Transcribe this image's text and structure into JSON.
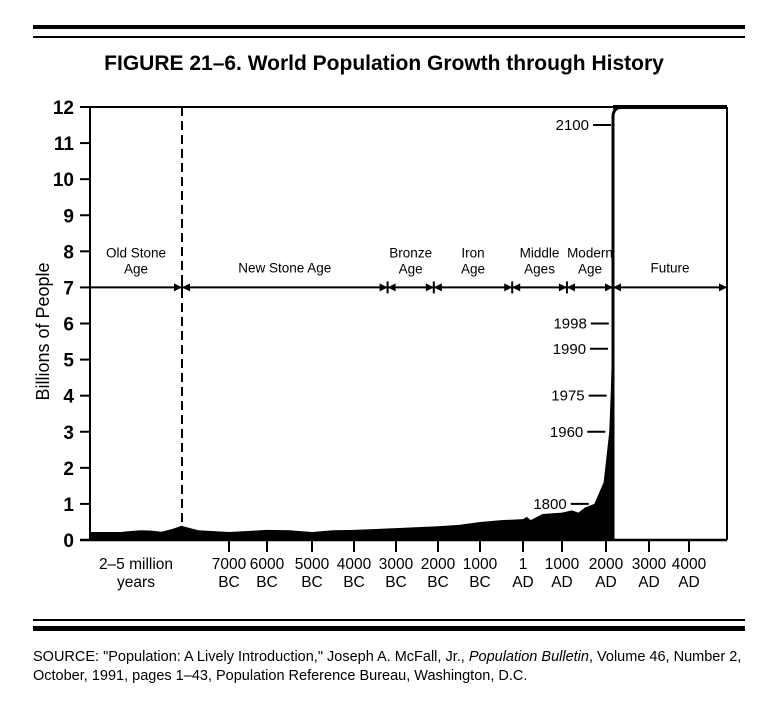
{
  "chart_data": {
    "type": "area",
    "title": "FIGURE 21–6. World Population Growth through History",
    "ylabel": "Billions of People",
    "xlabel": "",
    "ylim": [
      0,
      12
    ],
    "yticks": [
      "0",
      "1",
      "2",
      "3",
      "4",
      "5",
      "6",
      "7",
      "8",
      "9",
      "10",
      "11",
      "12"
    ],
    "xtick_labels": [
      {
        "line1": "2–5 million",
        "line2": "years"
      },
      {
        "year": -7000,
        "line1": "7000",
        "line2": "BC"
      },
      {
        "year": -6000,
        "line1": "6000",
        "line2": "BC"
      },
      {
        "year": -5000,
        "line1": "5000",
        "line2": "BC"
      },
      {
        "year": -4000,
        "line1": "4000",
        "line2": "BC"
      },
      {
        "year": -3000,
        "line1": "3000",
        "line2": "BC"
      },
      {
        "year": -2000,
        "line1": "2000",
        "line2": "BC"
      },
      {
        "year": -1000,
        "line1": "1000",
        "line2": "BC"
      },
      {
        "year": 1,
        "line1": "1",
        "line2": "AD"
      },
      {
        "year": 1000,
        "line1": "1000",
        "line2": "AD"
      },
      {
        "year": 2000,
        "line1": "2000",
        "line2": "AD"
      },
      {
        "year": 3000,
        "line1": "3000",
        "line2": "AD"
      },
      {
        "year": 4000,
        "line1": "4000",
        "line2": "AD"
      }
    ],
    "old_stone_age_values": [
      0.22,
      0.22,
      0.22,
      0.22,
      0.25,
      0.27,
      0.26,
      0.23,
      0.3,
      0.4
    ],
    "series": [
      {
        "x": [
          -8200,
          -7800,
          -7000,
          -6500,
          -6000,
          -5500,
          -5000,
          -4500,
          -4000,
          -3000,
          -2000,
          -1500,
          -1000,
          -500,
          1,
          100,
          200,
          500,
          1000,
          1300,
          1500,
          1700,
          1800,
          1900,
          1960,
          1975,
          1990,
          1998,
          2000
        ],
        "y": [
          0.38,
          0.27,
          0.22,
          0.25,
          0.28,
          0.27,
          0.22,
          0.27,
          0.28,
          0.33,
          0.38,
          0.42,
          0.5,
          0.55,
          0.58,
          0.64,
          0.55,
          0.72,
          0.76,
          0.82,
          0.76,
          0.9,
          1.0,
          1.6,
          3.0,
          4.0,
          5.3,
          6.0,
          6.5
        ]
      }
    ],
    "projection": {
      "x": [
        2000,
        2100
      ],
      "y": [
        6.5,
        12
      ]
    },
    "annotations": [
      {
        "label": "1800",
        "y": 1.0
      },
      {
        "label": "1960",
        "y": 3.0
      },
      {
        "label": "1975",
        "y": 4.0
      },
      {
        "label": "1990",
        "y": 5.3
      },
      {
        "label": "1998",
        "y": 6.0
      },
      {
        "label": "2100",
        "y": 11.5
      }
    ],
    "eras": [
      {
        "line1": "Old Stone",
        "line2": "Age"
      },
      {
        "line1": "New Stone Age",
        "line2": ""
      },
      {
        "line1": "Bronze",
        "line2": "Age"
      },
      {
        "line1": "Iron",
        "line2": "Age"
      },
      {
        "line1": "Middle",
        "line2": "Ages"
      },
      {
        "line1": "Modern",
        "line2": "Age"
      },
      {
        "line1": "Future",
        "line2": ""
      }
    ],
    "era_boundaries": [
      -8200,
      -3200,
      -2100,
      -250,
      1150,
      2000
    ],
    "era_arrow_level": 7,
    "grid": false,
    "fill_color": "#000000"
  },
  "source": {
    "prefix": "SOURCE: \"Population: A Lively Introduction,\" Joseph A. McFall, Jr., ",
    "italic": "Population Bulletin",
    "suffix": ", Volume 46, Number 2, October, 1991, pages 1–43, Population Reference Bureau, Washington, D.C."
  }
}
